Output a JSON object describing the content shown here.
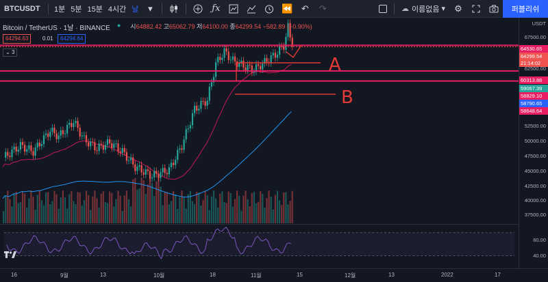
{
  "toolbar": {
    "symbol": "BTCUSDT",
    "timeframes": [
      {
        "label": "1분",
        "active": false
      },
      {
        "label": "5분",
        "active": false
      },
      {
        "label": "15분",
        "active": false
      },
      {
        "label": "4시간",
        "active": false
      },
      {
        "label": "날",
        "active": true
      }
    ],
    "layout_name": "이름없음",
    "publish_label": "퍼블리쉬"
  },
  "legend": {
    "title": "Bitcoin / TetherUS · 1날 · BINANCE",
    "open_key": "시",
    "open_val": "64882.42",
    "high_key": "고",
    "high_val": "65062.79",
    "low_key": "저",
    "low_val": "64100.00",
    "close_key": "종",
    "close_val": "64299.54",
    "change": "−582.89 (−0.90%)",
    "bid": "64294.63",
    "spread": "0.01",
    "ask": "64294.64",
    "indicator_count": "3"
  },
  "price_axis": {
    "currency": "USDT",
    "labels": [
      "67500.00",
      "62500.00",
      "52500.00",
      "50000.00",
      "47500.00",
      "45000.00",
      "42500.00",
      "40000.00",
      "37500.00"
    ],
    "tags": [
      {
        "text": "64530.65",
        "color": "#e91e63"
      },
      {
        "text": "64299.54",
        "color": "#ef5350"
      },
      {
        "text": "21:14:02",
        "color": "#ef5350"
      },
      {
        "text": "60313.88",
        "color": "#e91e63"
      },
      {
        "text": "59067.39",
        "color": "#26a69a"
      },
      {
        "text": "58829.10",
        "color": "#e91e63"
      },
      {
        "text": "58790.65",
        "color": "#2962ff"
      },
      {
        "text": "58648.64",
        "color": "#e91e63"
      }
    ]
  },
  "rsi": {
    "labels": [
      "60.00",
      "40.00"
    ]
  },
  "time_axis": {
    "labels": [
      "16",
      "9월",
      "13",
      "10월",
      "18",
      "11월",
      "15",
      "12월",
      "13",
      "2022",
      "17"
    ]
  },
  "annotations": {
    "a": "A",
    "b": "B"
  },
  "colors": {
    "accent": "#2962ff",
    "up": "#26a69a",
    "down": "#ef5350",
    "level": "#e91e63",
    "ma_slow": "#2196f3",
    "ma_fast": "#c2185b",
    "rsi": "#7e57c2"
  },
  "chart_data": {
    "type": "candlestick",
    "symbol": "BTCUSDT",
    "x_range": [
      "2021-08-20",
      "2022-01-23"
    ],
    "y_range": [
      36500,
      70000
    ],
    "horizontal_levels": [
      64530.65,
      60313.88,
      58648.64
    ],
    "candles_sample": [
      {
        "date": "2021-10-20",
        "open": 64000,
        "high": 66000,
        "low": 62500,
        "close": 65500
      },
      {
        "date": "2021-11-10",
        "open": 67000,
        "high": 69000,
        "low": 63000,
        "close": 64900
      },
      {
        "date": "2021-11-11",
        "open": 64882.42,
        "high": 65062.79,
        "low": 64100.0,
        "close": 64299.54
      }
    ]
  }
}
